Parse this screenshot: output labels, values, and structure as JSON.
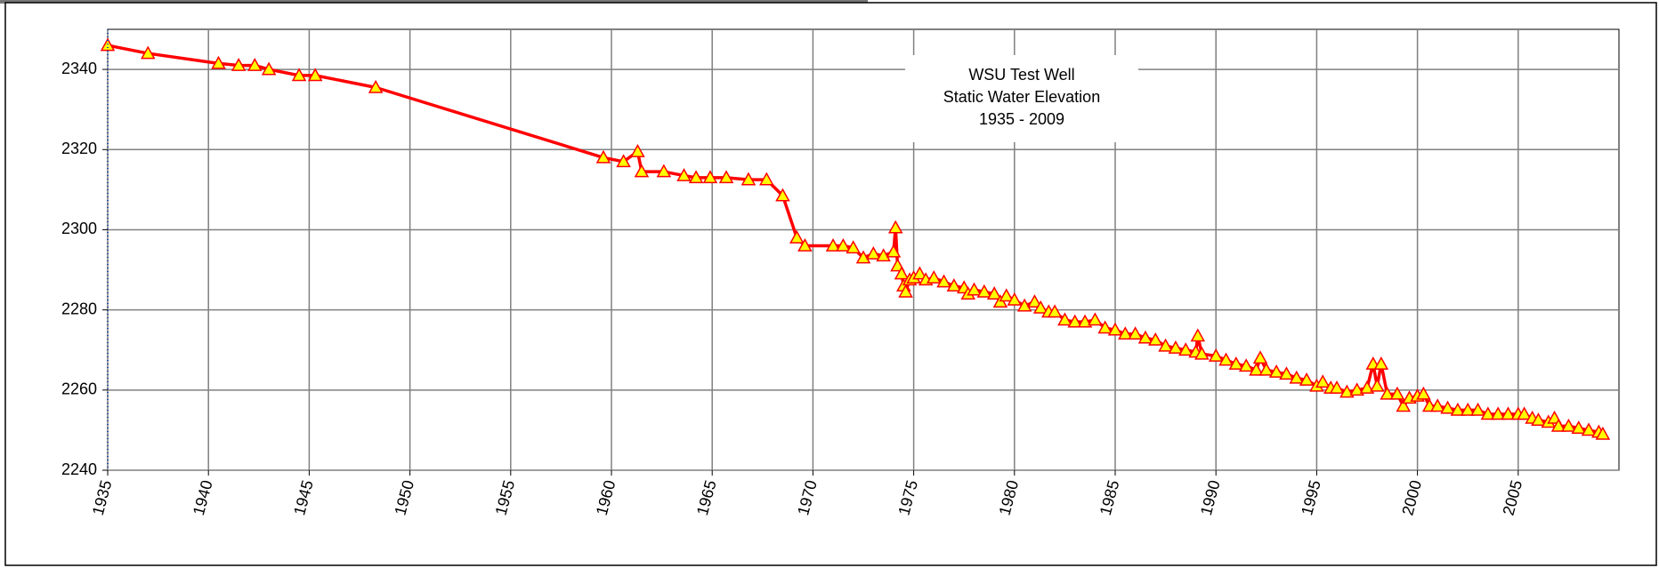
{
  "chart_data": {
    "type": "line",
    "title": [
      "WSU Test Well",
      "Static Water Elevation",
      "1935 - 2009"
    ],
    "x": [
      1935,
      1937,
      1940.5,
      1941.5,
      1942.3,
      1943,
      1944.5,
      1945.3,
      1948.3,
      1959.6,
      1960.6,
      1961.3,
      1961.5,
      1962.6,
      1963.6,
      1964.2,
      1964.9,
      1965.7,
      1966.8,
      1967.7,
      1968.5,
      1969.2,
      1969.6,
      1971,
      1971.5,
      1972,
      1972.5,
      1973,
      1973.5,
      1974,
      1974.1,
      1974.2,
      1974.4,
      1974.5,
      1974.6,
      1974.8,
      1975,
      1975.3,
      1975.6,
      1976,
      1976.5,
      1977,
      1977.5,
      1977.7,
      1978,
      1978.5,
      1979,
      1979.3,
      1979.6,
      1980,
      1980.5,
      1981,
      1981.3,
      1981.7,
      1982,
      1982.5,
      1983,
      1983.5,
      1984,
      1984.5,
      1985,
      1985.5,
      1986,
      1986.5,
      1987,
      1987.5,
      1988,
      1988.5,
      1989,
      1989.1,
      1989.3,
      1990,
      1990.5,
      1991,
      1991.5,
      1992,
      1992.2,
      1992.5,
      1993,
      1993.5,
      1994,
      1994.5,
      1995,
      1995.3,
      1995.7,
      1996,
      1996.5,
      1997,
      1997.5,
      1997.8,
      1998,
      1998.2,
      1998.5,
      1999,
      1999.3,
      1999.6,
      2000,
      2000.3,
      2000.6,
      2001,
      2001.5,
      2002,
      2002.5,
      2003,
      2003.5,
      2004,
      2004.5,
      2005,
      2005.3,
      2005.7,
      2006,
      2006.5,
      2006.8,
      2007,
      2007.5,
      2008,
      2008.5,
      2009,
      2009.2
    ],
    "values": [
      2346,
      2344,
      2341.5,
      2341,
      2341,
      2340,
      2338.5,
      2338.5,
      2335.5,
      2318,
      2317,
      2319.5,
      2314.5,
      2314.5,
      2313.5,
      2313,
      2313,
      2313,
      2312.5,
      2312.5,
      2308.5,
      2298,
      2296,
      2296,
      2296,
      2295.5,
      2293,
      2294,
      2293.5,
      2294.5,
      2300.5,
      2291,
      2289,
      2286,
      2284.5,
      2287.5,
      2288,
      2289,
      2287.5,
      2288,
      2287,
      2286,
      2285.5,
      2284,
      2285,
      2284.5,
      2284,
      2282,
      2283.5,
      2282.5,
      2281,
      2282,
      2280.5,
      2279.5,
      2279.5,
      2277.5,
      2277,
      2277,
      2277.5,
      2275.5,
      2275,
      2274,
      2274,
      2273,
      2272.5,
      2271,
      2270.5,
      2270,
      2269.5,
      2273.5,
      2269,
      2268.5,
      2267.5,
      2266.5,
      2266,
      2265,
      2268,
      2265,
      2264.5,
      2264,
      2263,
      2262.5,
      2261,
      2262,
      2260.5,
      2260.5,
      2259.5,
      2260,
      2260.5,
      2266.5,
      2261,
      2266.5,
      2259,
      2259,
      2256,
      2258,
      2258.5,
      2259,
      2256,
      2256,
      2255.5,
      2255,
      2255,
      2255,
      2254,
      2254,
      2254,
      2254,
      2254,
      2253,
      2252.5,
      2252,
      2253,
      2251,
      2251,
      2250.5,
      2250,
      2249.5,
      2249
    ],
    "color": "#ff0000",
    "marker_color": "#ffff00",
    "xlim": [
      1935,
      2010
    ],
    "xticks": [
      1935,
      1940,
      1945,
      1950,
      1955,
      1960,
      1965,
      1970,
      1975,
      1980,
      1985,
      1990,
      1995,
      2000,
      2005
    ],
    "ylim": [
      2240,
      2350
    ],
    "yticks": [
      2240,
      2260,
      2280,
      2300,
      2320,
      2340
    ],
    "grid": true
  }
}
